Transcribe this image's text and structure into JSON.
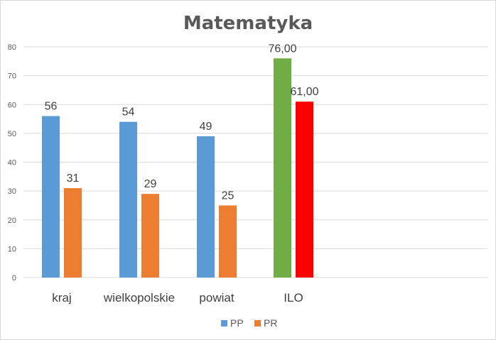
{
  "chart_data": {
    "type": "bar",
    "title": "Matematyka",
    "categories": [
      "kraj",
      "wielkopolskie",
      "powiat",
      "ILO"
    ],
    "series": [
      {
        "name": "PP",
        "color": "#5b9bd5",
        "values": [
          56,
          54,
          49,
          76
        ],
        "labels": [
          "56",
          "54",
          "49",
          "76,00"
        ]
      },
      {
        "name": "PR",
        "color": "#ed7d31",
        "values": [
          31,
          29,
          25,
          61
        ],
        "labels": [
          "31",
          "29",
          "25",
          "61,00"
        ]
      }
    ],
    "point_color_overrides": [
      {
        "series": 0,
        "category": 3,
        "color": "#70ad47"
      },
      {
        "series": 1,
        "category": 3,
        "color": "#ff0000"
      }
    ],
    "y_ticks": [
      "0",
      "10",
      "20",
      "30",
      "40",
      "50",
      "60",
      "70",
      "80"
    ],
    "ylim": [
      0,
      80
    ],
    "grid": true,
    "legend_position": "bottom"
  }
}
